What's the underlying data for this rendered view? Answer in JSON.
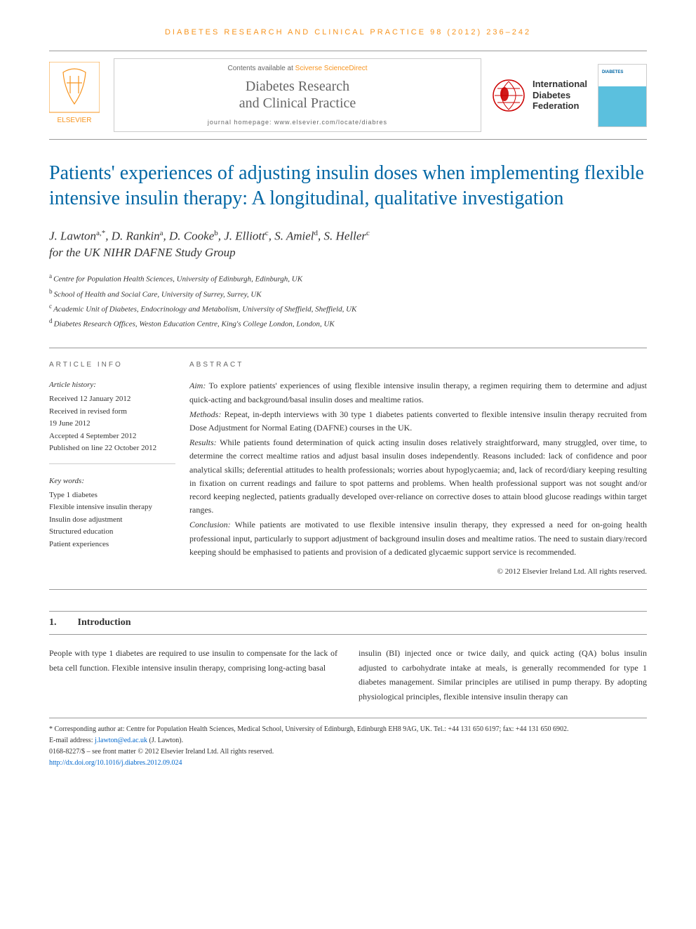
{
  "header": {
    "journal_ref": "DIABETES RESEARCH AND CLINICAL PRACTICE 98 (2012) 236–242",
    "contents_prefix": "Contents available at ",
    "contents_link": "Sciverse ScienceDirect",
    "journal_name_line1": "Diabetes Research",
    "journal_name_line2": "and Clinical Practice",
    "homepage": "journal homepage: www.elsevier.com/locate/diabres",
    "idf_line1": "International",
    "idf_line2": "Diabetes",
    "idf_line3": "Federation",
    "elsevier_label": "ELSEVIER"
  },
  "title": "Patients' experiences of adjusting insulin doses when implementing flexible intensive insulin therapy: A longitudinal, qualitative investigation",
  "authors_html": "J. Lawton",
  "authors": [
    {
      "name": "J. Lawton",
      "aff": "a,*"
    },
    {
      "name": "D. Rankin",
      "aff": "a"
    },
    {
      "name": "D. Cooke",
      "aff": "b"
    },
    {
      "name": "J. Elliott",
      "aff": "c"
    },
    {
      "name": "S. Amiel",
      "aff": "d"
    },
    {
      "name": "S. Heller",
      "aff": "c"
    }
  ],
  "study_group": "for the UK NIHR DAFNE Study Group",
  "affiliations": [
    {
      "sup": "a",
      "text": "Centre for Population Health Sciences, University of Edinburgh, Edinburgh, UK"
    },
    {
      "sup": "b",
      "text": "School of Health and Social Care, University of Surrey, Surrey, UK"
    },
    {
      "sup": "c",
      "text": "Academic Unit of Diabetes, Endocrinology and Metabolism, University of Sheffield, Sheffield, UK"
    },
    {
      "sup": "d",
      "text": "Diabetes Research Offices, Weston Education Centre, King's College London, London, UK"
    }
  ],
  "info": {
    "label": "ARTICLE INFO",
    "history_head": "Article history:",
    "history": [
      "Received 12 January 2012",
      "Received in revised form",
      "19 June 2012",
      "Accepted 4 September 2012",
      "Published on line 22 October 2012"
    ],
    "keywords_head": "Key words:",
    "keywords": [
      "Type 1 diabetes",
      "Flexible intensive insulin therapy",
      "Insulin dose adjustment",
      "Structured education",
      "Patient experiences"
    ]
  },
  "abstract": {
    "label": "ABSTRACT",
    "aim_label": "Aim:",
    "aim": " To explore patients' experiences of using flexible intensive insulin therapy, a regimen requiring them to determine and adjust quick-acting and background/basal insulin doses and mealtime ratios.",
    "methods_label": "Methods:",
    "methods": " Repeat, in-depth interviews with 30 type 1 diabetes patients converted to flexible intensive insulin therapy recruited from Dose Adjustment for Normal Eating (DAFNE) courses in the UK.",
    "results_label": "Results:",
    "results": " While patients found determination of quick acting insulin doses relatively straightforward, many struggled, over time, to determine the correct mealtime ratios and adjust basal insulin doses independently. Reasons included: lack of confidence and poor analytical skills; deferential attitudes to health professionals; worries about hypoglycaemia; and, lack of record/diary keeping resulting in fixation on current readings and failure to spot patterns and problems. When health professional support was not sought and/or record keeping neglected, patients gradually developed over-reliance on corrective doses to attain blood glucose readings within target ranges.",
    "conclusion_label": "Conclusion:",
    "conclusion": " While patients are motivated to use flexible intensive insulin therapy, they expressed a need for on-going health professional input, particularly to support adjustment of background insulin doses and mealtime ratios. The need to sustain diary/record keeping should be emphasised to patients and provision of a dedicated glycaemic support service is recommended.",
    "copyright": "© 2012 Elsevier Ireland Ltd. All rights reserved."
  },
  "intro": {
    "num": "1.",
    "heading": "Introduction",
    "col1": "People with type 1 diabetes are required to use insulin to compensate for the lack of beta cell function. Flexible intensive insulin therapy, comprising long-acting basal",
    "col2": "insulin (BI) injected once or twice daily, and quick acting (QA) bolus insulin adjusted to carbohydrate intake at meals, is generally recommended for type 1 diabetes management. Similar principles are utilised in pump therapy. By adopting physiological principles, flexible intensive insulin therapy can"
  },
  "footer": {
    "corr_label": "* Corresponding author at:",
    "corr": " Centre for Population Health Sciences, Medical School, University of Edinburgh, Edinburgh EH8 9AG, UK. Tel.: +44 131 650 6197; fax: +44 131 650 6902.",
    "email_label": "E-mail address: ",
    "email": "j.lawton@ed.ac.uk",
    "email_suffix": " (J. Lawton).",
    "issn": "0168-8227/$ – see front matter © 2012 Elsevier Ireland Ltd. All rights reserved.",
    "doi": "http://dx.doi.org/10.1016/j.diabres.2012.09.024"
  },
  "colors": {
    "accent_orange": "#f7941e",
    "title_blue": "#0066a4",
    "link_blue": "#0066cc",
    "text": "#333333",
    "border": "#999999"
  }
}
